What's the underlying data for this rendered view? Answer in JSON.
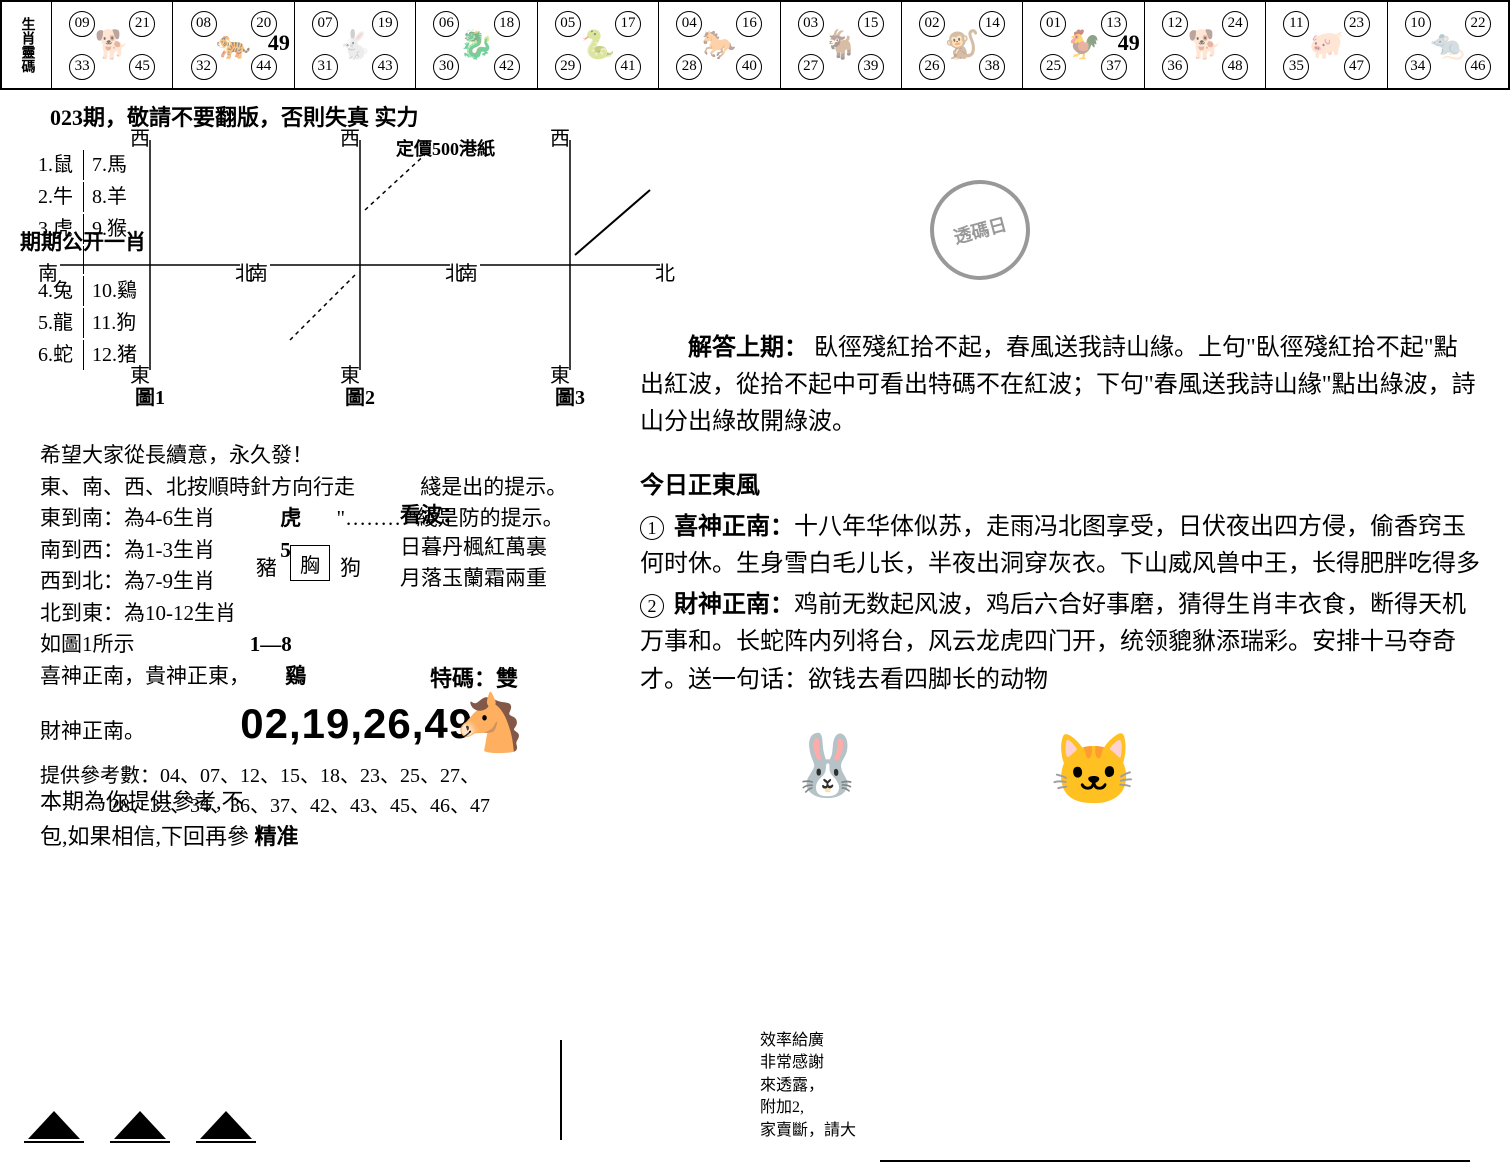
{
  "zodiac_header": "生肖靈碼",
  "zodiac": [
    {
      "nums": [
        "09",
        "21",
        "33",
        "45"
      ],
      "big": "",
      "glyph": "🐕"
    },
    {
      "nums": [
        "08",
        "20",
        "32",
        "44"
      ],
      "big": "49",
      "glyph": "🐅"
    },
    {
      "nums": [
        "07",
        "19",
        "31",
        "43"
      ],
      "big": "",
      "glyph": "🐇"
    },
    {
      "nums": [
        "06",
        "18",
        "30",
        "42"
      ],
      "big": "",
      "glyph": "🐉"
    },
    {
      "nums": [
        "05",
        "17",
        "29",
        "41"
      ],
      "big": "",
      "glyph": "🐍"
    },
    {
      "nums": [
        "04",
        "16",
        "28",
        "40"
      ],
      "big": "",
      "glyph": "🐎"
    },
    {
      "nums": [
        "03",
        "15",
        "27",
        "39"
      ],
      "big": "",
      "glyph": "🐐"
    },
    {
      "nums": [
        "02",
        "14",
        "26",
        "38"
      ],
      "big": "",
      "glyph": "🐒"
    },
    {
      "nums": [
        "01",
        "13",
        "25",
        "37"
      ],
      "big": "49",
      "glyph": "🐓"
    },
    {
      "nums": [
        "12",
        "24",
        "36",
        "48"
      ],
      "big": "",
      "glyph": "🐕"
    },
    {
      "nums": [
        "11",
        "23",
        "35",
        "47"
      ],
      "big": "",
      "glyph": "🐖"
    },
    {
      "nums": [
        "10",
        "22",
        "34",
        "46"
      ],
      "big": "",
      "glyph": "🐀"
    }
  ],
  "line023": "023期，敬請不要翻版，否則失真 实力",
  "price": "定價500港紙",
  "zodiac_list": {
    "top": [
      [
        "1.鼠",
        "7.馬"
      ],
      [
        "2.牛",
        "8.羊"
      ],
      [
        "3.虎",
        "9.猴"
      ]
    ],
    "bot": [
      [
        "4.兔",
        "10.鷄"
      ],
      [
        "5.龍",
        "11.狗"
      ],
      [
        "6.蛇",
        "12.猪"
      ]
    ]
  },
  "open_one": "期期公开一肖",
  "compass_labels": [
    "圖1",
    "圖2",
    "圖3"
  ],
  "dirs": {
    "w": "西",
    "n": "南",
    "e": "北",
    "s": "東"
  },
  "left_block": {
    "l1": "希望大家從長續意，永久發！",
    "l2": "東、南、西、北按順時針方向行走",
    "l2b": "綫是出的提示。",
    "l3a": "東到南：為4-6生肖",
    "l3b": "虎",
    "l3c": "\"………\"綫是防的提示。",
    "l4a": "南到西：為1-3生肖",
    "l4b": "5",
    "l5": "西到北：為7-9生肖",
    "l6a": "北到東：為10-12生肖",
    "l6b": "豬",
    "l6c": "狗",
    "l7a": "如圖1所示",
    "l7b": "1—8",
    "l8": "喜神正南，貴神正東，",
    "l8b": "鷄",
    "l9": "財神正南。",
    "bignums": "02,19,26,49",
    "tema": "特碼：雙",
    "ref_label": "提供參考數：",
    "ref1": "04、07、12、15、18、23、25、27、",
    "ref2": "28、32、34、36、37、42、43、45、46、47"
  },
  "xiong": {
    "top": "胸",
    "l": "豬",
    "r": "狗",
    "bot": "1—8"
  },
  "kanbo": {
    "t": "看波：",
    "l1": "日暮丹楓紅萬裏",
    "l2": "月落玉蘭霜兩重"
  },
  "bottom_left": {
    "l1": "本期為你提供參考,不",
    "l2": "包,如果相信,下回再參",
    "l2b": "精准"
  },
  "right": {
    "jieda": "解答上期：臥徑殘紅拾不起，春風送我詩山緣。上句\"臥徑殘紅拾不起\"點出紅波，從拾不起中可看出特碼不在紅波；下句\"春風送我詩山緣\"點出綠波，詩山分出綠故開綠波。",
    "today": "今日正東風",
    "s1t": "喜神正南：",
    "s1": "十八年华体似苏，走雨冯北图享受，日伏夜出四方侵，偷香窍玉何时休。生身雪白毛儿长，半夜出洞穿灰衣。下山威风兽中王，长得肥胖吃得多",
    "s2t": "財神正南：",
    "s2": "鸡前无数起风波，鸡后六合好事磨，猜得生肖丰衣食，断得天机万事和。长蛇阵内列将台，风云龙虎四门开，统领貔貅添瑞彩。安排十马夺奇才。送一句话：欲钱去看四脚长的动物"
  },
  "stamp_text": "透碼日",
  "bottom_right": {
    "l1": "效率給廣",
    "l2": "非常感謝",
    "l3": "來透露，",
    "l4": "附加2,",
    "l5": "家賣斷，請大"
  }
}
